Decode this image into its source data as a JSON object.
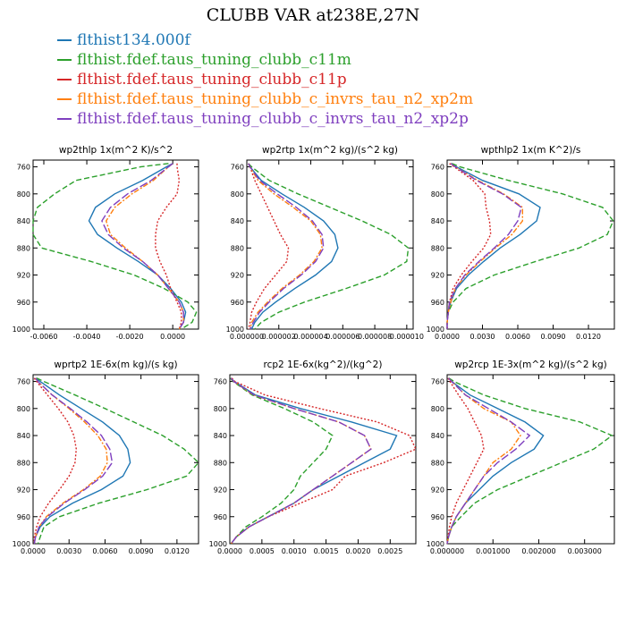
{
  "figure_title": "CLUBB VAR at238E,27N",
  "legend": [
    {
      "label": "flthist134.000f",
      "color": "#1f77b4",
      "dash": "solid"
    },
    {
      "label": "flthist.fdef.taus_tuning_clubb_c11m",
      "color": "#2ca02c",
      "dash": "dashed"
    },
    {
      "label": "flthist.fdef.taus_tuning_clubb_c11p",
      "color": "#d62728",
      "dash": "dotted"
    },
    {
      "label": "flthist.fdef.taus_tuning_clubb_c_invrs_tau_n2_xp2m",
      "color": "#ff7f0e",
      "dash": "dashdot"
    },
    {
      "label": "flthist.fdef.taus_tuning_clubb_c_invrs_tau_n2_xp2p",
      "color": "#7f3fbf",
      "dash": "longdash"
    }
  ],
  "chart_data": [
    {
      "type": "line",
      "title": "wp2thlp   1x(m^2 K)/s^2",
      "xlim": [
        -0.0065,
        0.0012
      ],
      "ylim": [
        1000,
        750
      ],
      "yticks": [
        760,
        800,
        840,
        880,
        920,
        960,
        1000
      ],
      "ytick_labels": [
        "760",
        "800",
        "840",
        "880",
        "920",
        "960",
        "1000"
      ],
      "xticks": [
        -0.006,
        -0.004,
        -0.002,
        0.0
      ],
      "xtick_labels": [
        "-0.0060",
        "-0.0040",
        "-0.0020",
        "0.0000"
      ],
      "y": [
        755,
        760,
        780,
        800,
        820,
        840,
        860,
        880,
        900,
        920,
        940,
        960,
        975,
        990,
        1000
      ],
      "series": [
        {
          "values": [
            0.0,
            -0.0003,
            -0.0014,
            -0.0027,
            -0.0036,
            -0.0039,
            -0.0035,
            -0.0026,
            -0.0016,
            -0.0007,
            -0.0001,
            0.0004,
            0.0006,
            0.0005,
            0.0003
          ]
        },
        {
          "values": [
            -0.0002,
            -0.0015,
            -0.0045,
            -0.0055,
            -0.0063,
            -0.0065,
            -0.0065,
            -0.0061,
            -0.0038,
            -0.0018,
            -0.0004,
            0.0007,
            0.0011,
            0.0009,
            0.0004
          ]
        },
        {
          "values": [
            0.0002,
            0.0002,
            0.0003,
            0.0002,
            -0.0003,
            -0.0007,
            -0.0008,
            -0.0008,
            -0.0006,
            -0.0003,
            -0.0001,
            0.0002,
            0.0004,
            0.0004,
            0.0003
          ]
        },
        {
          "values": [
            0.0,
            -0.0002,
            -0.0009,
            -0.0019,
            -0.0027,
            -0.0031,
            -0.0029,
            -0.0022,
            -0.0014,
            -0.0007,
            -0.0002,
            0.0003,
            0.0005,
            0.0005,
            0.0003
          ]
        },
        {
          "values": [
            0.0,
            -0.0002,
            -0.001,
            -0.0021,
            -0.0029,
            -0.0033,
            -0.003,
            -0.0023,
            -0.0014,
            -0.0007,
            -0.0002,
            0.0003,
            0.0005,
            0.0005,
            0.0003
          ]
        }
      ]
    },
    {
      "type": "line",
      "title": "wp2rtp   1x(m^2 kg)/(s^2 kg)",
      "xlim": [
        0,
        1.04e-05
      ],
      "ylim": [
        1000,
        750
      ],
      "yticks": [
        760,
        800,
        840,
        880,
        920,
        960,
        1000
      ],
      "ytick_labels": [
        "760",
        "800",
        "840",
        "880",
        "920",
        "960",
        "1000"
      ],
      "xticks": [
        0,
        2e-06,
        4e-06,
        6e-06,
        8e-06,
        1e-05
      ],
      "xtick_labels": [
        "0.000000",
        "0.000002",
        "0.000004",
        "0.000006",
        "0.000008",
        "0.000010"
      ],
      "y": [
        755,
        760,
        780,
        800,
        820,
        840,
        860,
        880,
        900,
        920,
        940,
        960,
        975,
        990,
        1000
      ],
      "series": [
        {
          "values": [
            1e-07,
            2e-07,
            9e-07,
            2.2e-06,
            3.6e-06,
            4.8e-06,
            5.5e-06,
            5.7e-06,
            5.3e-06,
            4.3e-06,
            3e-06,
            1.8e-06,
            1e-06,
            5e-07,
            3e-07
          ]
        },
        {
          "values": [
            1e-07,
            3e-07,
            1.4e-06,
            3.2e-06,
            5.2e-06,
            7.2e-06,
            9e-06,
            1.01e-05,
            1e-05,
            8.6e-06,
            6.2e-06,
            3.6e-06,
            2e-06,
            9e-07,
            5e-07
          ]
        },
        {
          "values": [
            1e-07,
            2e-07,
            5e-07,
            9e-07,
            1.3e-06,
            1.7e-06,
            2.1e-06,
            2.6e-06,
            2.5e-06,
            1.8e-06,
            1.1e-06,
            6e-07,
            3e-07,
            2e-07,
            1e-07
          ]
        },
        {
          "values": [
            1e-07,
            2e-07,
            7e-07,
            1.7e-06,
            2.9e-06,
            4e-06,
            4.6e-06,
            4.7e-06,
            4.2e-06,
            3.3e-06,
            2.2e-06,
            1.3e-06,
            7e-07,
            3e-07,
            2e-07
          ]
        },
        {
          "values": [
            1e-07,
            2e-07,
            8e-07,
            1.9e-06,
            3.1e-06,
            4.1e-06,
            4.7e-06,
            4.8e-06,
            4.3e-06,
            3.4e-06,
            2.3e-06,
            1.4e-06,
            8e-07,
            4e-07,
            2e-07
          ]
        }
      ]
    },
    {
      "type": "line",
      "title": "wpthlp2   1x(m K^2)/s",
      "xlim": [
        0,
        0.0142
      ],
      "ylim": [
        1000,
        750
      ],
      "yticks": [
        760,
        800,
        840,
        880,
        920,
        960,
        1000
      ],
      "ytick_labels": [
        "760",
        "800",
        "840",
        "880",
        "920",
        "960",
        "1000"
      ],
      "xticks": [
        0,
        0.003,
        0.006,
        0.009,
        0.012
      ],
      "xtick_labels": [
        "0.0000",
        "0.0030",
        "0.0060",
        "0.0090",
        "0.0120"
      ],
      "y": [
        755,
        760,
        780,
        800,
        820,
        840,
        860,
        880,
        900,
        920,
        940,
        960,
        975,
        990,
        1000
      ],
      "series": [
        {
          "values": [
            0.0003,
            0.0008,
            0.003,
            0.0061,
            0.0079,
            0.0076,
            0.0062,
            0.0045,
            0.0031,
            0.0018,
            0.0008,
            0.0003,
            0.0001,
            0.0,
            0.0
          ]
        },
        {
          "values": [
            0.0004,
            0.0011,
            0.0052,
            0.0098,
            0.0132,
            0.0141,
            0.0136,
            0.0112,
            0.0075,
            0.004,
            0.0016,
            0.0005,
            0.0001,
            0.0,
            0.0
          ]
        },
        {
          "values": [
            0.0002,
            0.0006,
            0.0022,
            0.0032,
            0.0033,
            0.0036,
            0.0037,
            0.0031,
            0.0021,
            0.0012,
            0.0005,
            0.0002,
            0.0001,
            0.0,
            0.0
          ]
        },
        {
          "values": [
            0.0003,
            0.0007,
            0.0026,
            0.0048,
            0.0064,
            0.0064,
            0.0055,
            0.0041,
            0.0028,
            0.0016,
            0.0007,
            0.0003,
            0.0001,
            0.0,
            0.0
          ]
        },
        {
          "values": [
            0.0003,
            0.0007,
            0.0025,
            0.0047,
            0.0063,
            0.006,
            0.0052,
            0.004,
            0.0027,
            0.0015,
            0.0007,
            0.0002,
            0.0001,
            0.0,
            0.0
          ]
        }
      ]
    },
    {
      "type": "line",
      "title": "wprtp2   1E-6x(m kg)/(s kg)",
      "xlim": [
        0,
        0.0138
      ],
      "ylim": [
        1000,
        750
      ],
      "yticks": [
        760,
        800,
        840,
        880,
        920,
        960,
        1000
      ],
      "ytick_labels": [
        "760",
        "800",
        "840",
        "880",
        "920",
        "960",
        "1000"
      ],
      "xticks": [
        0,
        0.003,
        0.006,
        0.009,
        0.012
      ],
      "xtick_labels": [
        "0.0000",
        "0.0030",
        "0.0060",
        "0.0090",
        "0.0120"
      ],
      "y": [
        755,
        760,
        780,
        800,
        820,
        840,
        860,
        880,
        900,
        920,
        940,
        960,
        975,
        990,
        1000
      ],
      "series": [
        {
          "values": [
            0.0002,
            0.0006,
            0.0022,
            0.004,
            0.0058,
            0.0072,
            0.0079,
            0.0081,
            0.0075,
            0.0057,
            0.0033,
            0.0014,
            0.0006,
            0.0002,
            0.0001
          ]
        },
        {
          "values": [
            0.0003,
            0.0009,
            0.0035,
            0.006,
            0.0084,
            0.0108,
            0.0126,
            0.0138,
            0.0128,
            0.0095,
            0.0055,
            0.0022,
            0.0009,
            0.0006,
            0.0004
          ]
        },
        {
          "values": [
            0.0001,
            0.0003,
            0.0012,
            0.0021,
            0.0029,
            0.0034,
            0.0036,
            0.0035,
            0.003,
            0.0022,
            0.0013,
            0.0006,
            0.0003,
            0.0001,
            0.0001
          ]
        },
        {
          "values": [
            0.0002,
            0.0004,
            0.0016,
            0.003,
            0.0043,
            0.0054,
            0.0061,
            0.0062,
            0.0056,
            0.0042,
            0.0025,
            0.0011,
            0.0005,
            0.0002,
            0.0001
          ]
        },
        {
          "values": [
            0.0002,
            0.0004,
            0.0016,
            0.0031,
            0.0045,
            0.0057,
            0.0064,
            0.0066,
            0.0058,
            0.0043,
            0.0026,
            0.0012,
            0.0005,
            0.0002,
            0.0001
          ]
        }
      ]
    },
    {
      "type": "line",
      "title": "rcp2   1E-6x(kg^2)/(kg^2)",
      "xlim": [
        0,
        0.0029
      ],
      "ylim": [
        1000,
        750
      ],
      "yticks": [
        760,
        800,
        840,
        880,
        920,
        960,
        1000
      ],
      "ytick_labels": [
        "760",
        "800",
        "840",
        "880",
        "920",
        "960",
        "1000"
      ],
      "xticks": [
        0,
        0.0005,
        0.001,
        0.0015,
        0.002,
        0.0025
      ],
      "xtick_labels": [
        "0.0000",
        "0.0005",
        "0.0010",
        "0.0015",
        "0.0020",
        "0.0025"
      ],
      "y": [
        755,
        760,
        780,
        800,
        820,
        840,
        860,
        880,
        900,
        920,
        940,
        960,
        975,
        990,
        1000
      ],
      "series": [
        {
          "values": [
            2e-05,
            7e-05,
            0.0004,
            0.0011,
            0.0019,
            0.0026,
            0.0025,
            0.0021,
            0.0017,
            0.0013,
            0.001,
            0.0006,
            0.0003,
            0.0001,
            2e-05
          ]
        },
        {
          "values": [
            1e-05,
            5e-05,
            0.00035,
            0.00085,
            0.0013,
            0.0016,
            0.0015,
            0.0013,
            0.0011,
            0.001,
            0.0008,
            0.0005,
            0.00025,
            0.0001,
            2e-05
          ]
        },
        {
          "values": [
            3e-05,
            8e-05,
            0.00055,
            0.0014,
            0.0023,
            0.0028,
            0.0029,
            0.0024,
            0.0018,
            0.0016,
            0.0011,
            0.0006,
            0.0003,
            0.0001,
            2e-05
          ]
        },
        {
          "values": [
            2e-05,
            6e-05,
            0.00037,
            0.001,
            0.0017,
            0.0021,
            0.0022,
            0.0019,
            0.0016,
            0.0013,
            0.001,
            0.0006,
            0.0003,
            0.0001,
            2e-05
          ]
        },
        {
          "values": [
            2e-05,
            6e-05,
            0.00038,
            0.001,
            0.0017,
            0.0021,
            0.0022,
            0.0019,
            0.0016,
            0.0013,
            0.001,
            0.0006,
            0.0003,
            0.0001,
            2e-05
          ]
        }
      ]
    },
    {
      "type": "line",
      "title": "wp2rcp   1E-3x(m^2 kg)/(s^2 kg)",
      "xlim": [
        0,
        0.00365
      ],
      "ylim": [
        1000,
        750
      ],
      "yticks": [
        760,
        800,
        840,
        880,
        920,
        960,
        1000
      ],
      "ytick_labels": [
        "760",
        "800",
        "840",
        "880",
        "920",
        "960",
        "1000"
      ],
      "xticks": [
        0,
        0.001,
        0.002,
        0.003
      ],
      "xtick_labels": [
        "0.000000",
        "0.001000",
        "0.002000",
        "0.003000"
      ],
      "y": [
        755,
        760,
        780,
        800,
        820,
        840,
        860,
        880,
        900,
        920,
        940,
        960,
        975,
        990,
        1000
      ],
      "series": [
        {
          "values": [
            3e-05,
            0.0001,
            0.0005,
            0.0011,
            0.0017,
            0.0021,
            0.0019,
            0.0014,
            0.001,
            0.0007,
            0.0004,
            0.0002,
            0.0001,
            3e-05,
            0.0
          ]
        },
        {
          "values": [
            4e-05,
            0.00015,
            0.0008,
            0.0017,
            0.0029,
            0.0036,
            0.0032,
            0.0025,
            0.0018,
            0.0011,
            0.0006,
            0.0003,
            0.0001,
            3e-05,
            0.0
          ]
        },
        {
          "values": [
            2e-05,
            6e-05,
            0.00025,
            0.00045,
            0.0006,
            0.00075,
            0.0008,
            0.00065,
            0.0005,
            0.00035,
            0.0002,
            0.0001,
            5e-05,
            2e-05,
            0.0
          ]
        },
        {
          "values": [
            3e-05,
            0.0001,
            0.0004,
            0.0008,
            0.0014,
            0.0016,
            0.0014,
            0.001,
            0.0008,
            0.0006,
            0.0004,
            0.0002,
            0.0001,
            3e-05,
            0.0
          ]
        },
        {
          "values": [
            3e-05,
            0.0001,
            0.0004,
            0.0009,
            0.0014,
            0.0018,
            0.0015,
            0.0011,
            0.0008,
            0.0006,
            0.0004,
            0.0002,
            0.0001,
            3e-05,
            0.0
          ]
        }
      ]
    }
  ]
}
